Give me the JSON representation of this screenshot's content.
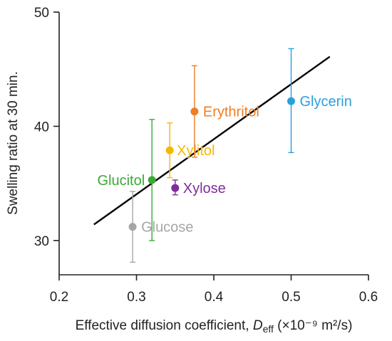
{
  "chart_data": {
    "type": "scatter",
    "title": "",
    "xlabel_main": "Effective diffusion coefficient, ",
    "xlabel_sym": "D",
    "xlabel_sub": "eff",
    "xlabel_unit": " (×10⁻⁹ m²/s)",
    "ylabel": "Swelling ratio at 30 min.",
    "xlim": [
      0.2,
      0.6
    ],
    "ylim": [
      27,
      50
    ],
    "xticks": [
      {
        "value": 0.2,
        "label": "0.2"
      },
      {
        "value": 0.3,
        "label": "0.3"
      },
      {
        "value": 0.4,
        "label": "0.4"
      },
      {
        "value": 0.5,
        "label": "0.5"
      },
      {
        "value": 0.6,
        "label": "0.6"
      }
    ],
    "yticks": [
      {
        "value": 30,
        "label": "30"
      },
      {
        "value": 40,
        "label": "40"
      },
      {
        "value": 50,
        "label": "50"
      }
    ],
    "grid": false,
    "points": [
      {
        "name": "Glucose",
        "x": 0.295,
        "y": 31.2,
        "err_low": 28.1,
        "err_high": 34.3,
        "color": "#a6a6a6"
      },
      {
        "name": "Glucitol",
        "x": 0.32,
        "y": 35.3,
        "err_low": 30.0,
        "err_high": 40.6,
        "color": "#3aaa35"
      },
      {
        "name": "Xylitol",
        "x": 0.343,
        "y": 37.9,
        "err_low": 35.5,
        "err_high": 40.3,
        "color": "#f5b800"
      },
      {
        "name": "Xylose",
        "x": 0.35,
        "y": 34.6,
        "err_low": 34.0,
        "err_high": 35.3,
        "color": "#7e2d9a"
      },
      {
        "name": "Erythritol",
        "x": 0.375,
        "y": 41.3,
        "err_low": 37.3,
        "err_high": 45.3,
        "color": "#f07d22"
      },
      {
        "name": "Glycerin",
        "x": 0.5,
        "y": 42.2,
        "err_low": 37.7,
        "err_high": 46.8,
        "color": "#2b9fdc"
      }
    ],
    "trendline": {
      "x": [
        0.245,
        0.55
      ],
      "y": [
        31.4,
        46.1
      ],
      "color": "#000000"
    }
  }
}
